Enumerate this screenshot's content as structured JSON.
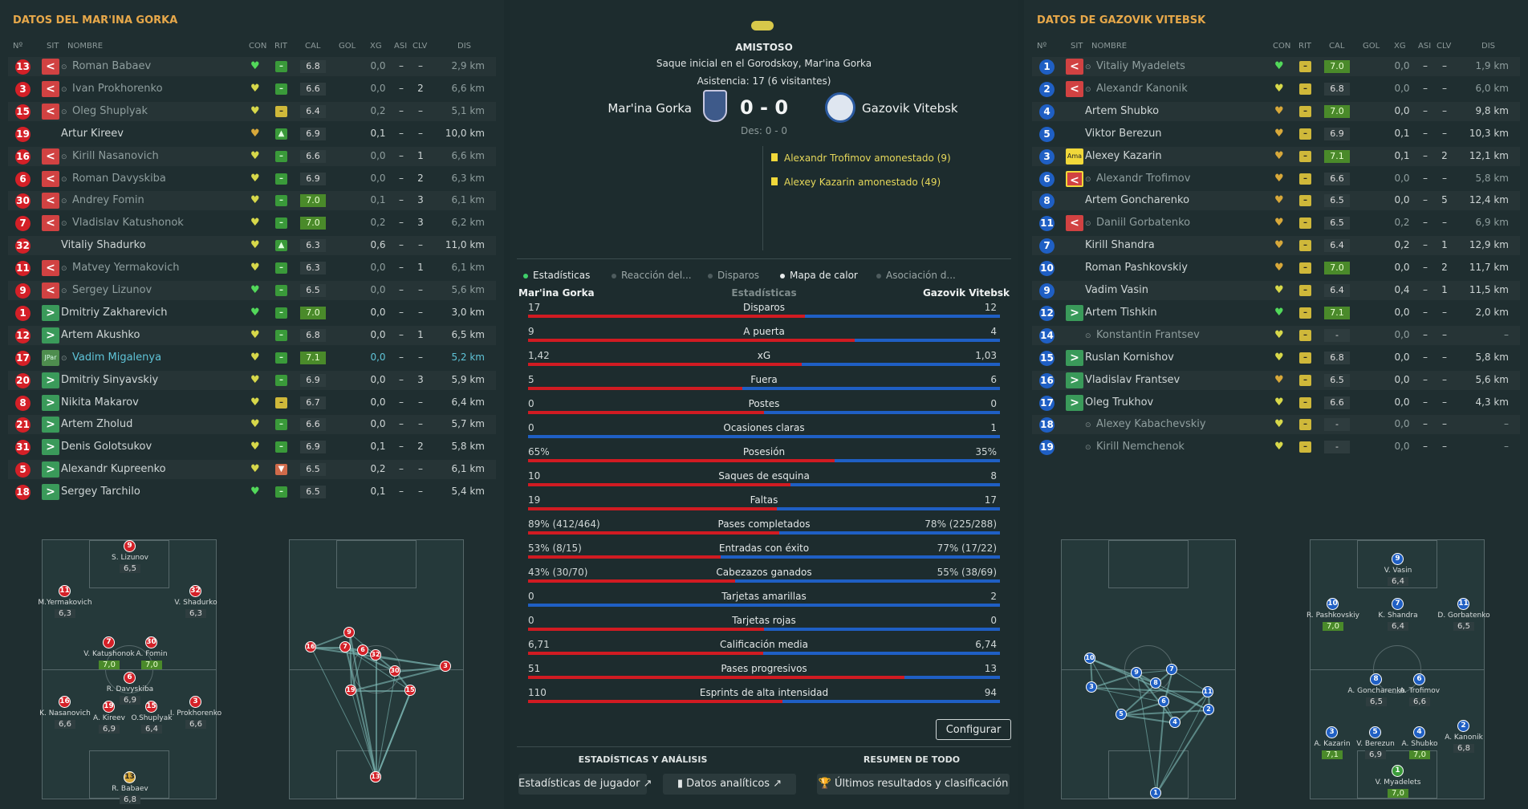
{
  "left": {
    "title": "DATOS DEL MAR'INA GORKA",
    "headers": {
      "num": "Nº",
      "sit": "SIT",
      "name": "NOMBRE",
      "con": "CON",
      "rit": "RIT",
      "cal": "CAL",
      "gol": "GOL",
      "xg": "XG",
      "asi": "ASI",
      "clv": "CLV",
      "dis": "DIS"
    },
    "players": [
      {
        "num": "13",
        "sit": "out",
        "name": "Roman Babaev",
        "con": "g",
        "rit": "g",
        "cal": "6.8",
        "cal_good": false,
        "gol": "",
        "xg": "0,0",
        "asi": "–",
        "clv": "–",
        "dis": "2,9 km",
        "style": "sub"
      },
      {
        "num": "3",
        "sit": "out",
        "name": "Ivan Prokhorenko",
        "con": "y",
        "rit": "g",
        "cal": "6.6",
        "cal_good": false,
        "gol": "",
        "xg": "0,0",
        "asi": "–",
        "clv": "2",
        "dis": "6,6 km",
        "style": "sub"
      },
      {
        "num": "15",
        "sit": "out",
        "name": "Oleg Shuplyak",
        "con": "y",
        "rit": "y",
        "cal": "6.4",
        "cal_good": false,
        "gol": "",
        "xg": "0,2",
        "asi": "–",
        "clv": "–",
        "dis": "5,1 km",
        "style": "sub"
      },
      {
        "num": "19",
        "sit": "",
        "name": "Artur Kireev",
        "con": "o",
        "rit": "up",
        "cal": "6.9",
        "cal_good": false,
        "gol": "",
        "xg": "0,1",
        "asi": "–",
        "clv": "–",
        "dis": "10,0 km",
        "style": "norm"
      },
      {
        "num": "16",
        "sit": "out",
        "name": "Kirill Nasanovich",
        "con": "y",
        "rit": "g",
        "cal": "6.6",
        "cal_good": false,
        "gol": "",
        "xg": "0,0",
        "asi": "–",
        "clv": "1",
        "dis": "6,6 km",
        "style": "sub"
      },
      {
        "num": "6",
        "sit": "out",
        "name": "Roman Davyskiba",
        "con": "y",
        "rit": "g",
        "cal": "6.9",
        "cal_good": false,
        "gol": "",
        "xg": "0,0",
        "asi": "–",
        "clv": "2",
        "dis": "6,3 km",
        "style": "sub"
      },
      {
        "num": "30",
        "sit": "out",
        "name": "Andrey Fomin",
        "con": "y",
        "rit": "g",
        "cal": "7.0",
        "cal_good": true,
        "gol": "",
        "xg": "0,1",
        "asi": "–",
        "clv": "3",
        "dis": "6,1 km",
        "style": "sub"
      },
      {
        "num": "7",
        "sit": "out",
        "name": "Vladislav Katushonok",
        "con": "y",
        "rit": "g",
        "cal": "7.0",
        "cal_good": true,
        "gol": "",
        "xg": "0,2",
        "asi": "–",
        "clv": "3",
        "dis": "6,2 km",
        "style": "sub"
      },
      {
        "num": "32",
        "sit": "",
        "name": "Vitaliy Shadurko",
        "con": "y",
        "rit": "up",
        "cal": "6.3",
        "cal_good": false,
        "gol": "",
        "xg": "0,6",
        "asi": "–",
        "clv": "–",
        "dis": "11,0 km",
        "style": "norm"
      },
      {
        "num": "11",
        "sit": "out",
        "name": "Matvey Yermakovich",
        "con": "y",
        "rit": "g",
        "cal": "6.3",
        "cal_good": false,
        "gol": "",
        "xg": "0,0",
        "asi": "–",
        "clv": "1",
        "dis": "6,1 km",
        "style": "sub"
      },
      {
        "num": "9",
        "sit": "out",
        "name": "Sergey Lizunov",
        "con": "g",
        "rit": "g",
        "cal": "6.5",
        "cal_good": false,
        "gol": "",
        "xg": "0,0",
        "asi": "–",
        "clv": "–",
        "dis": "5,6 km",
        "style": "sub"
      },
      {
        "num": "1",
        "sit": "in",
        "name": "Dmitriy Zakharevich",
        "con": "g",
        "rit": "g",
        "cal": "7.0",
        "cal_good": true,
        "gol": "",
        "xg": "0,0",
        "asi": "–",
        "clv": "–",
        "dis": "3,0 km",
        "style": "norm"
      },
      {
        "num": "12",
        "sit": "in",
        "name": "Artem Akushko",
        "con": "y",
        "rit": "g",
        "cal": "6.8",
        "cal_good": false,
        "gol": "",
        "xg": "0,0",
        "asi": "–",
        "clv": "1",
        "dis": "6,5 km",
        "style": "norm"
      },
      {
        "num": "17",
        "sit": "jpar",
        "name": "Vadim Migalenya",
        "con": "y",
        "rit": "g",
        "cal": "7.1",
        "cal_good": true,
        "gol": "",
        "xg": "0,0",
        "asi": "–",
        "clv": "–",
        "dis": "5,2 km",
        "style": "hl"
      },
      {
        "num": "20",
        "sit": "in",
        "name": "Dmitriy Sinyavskiy",
        "con": "y",
        "rit": "g",
        "cal": "6.9",
        "cal_good": false,
        "gol": "",
        "xg": "0,0",
        "asi": "–",
        "clv": "3",
        "dis": "5,9 km",
        "style": "norm"
      },
      {
        "num": "8",
        "sit": "in",
        "name": "Nikita Makarov",
        "con": "y",
        "rit": "y",
        "cal": "6.7",
        "cal_good": false,
        "gol": "",
        "xg": "0,0",
        "asi": "–",
        "clv": "–",
        "dis": "6,4 km",
        "style": "norm"
      },
      {
        "num": "21",
        "sit": "in",
        "name": "Artem Zholud",
        "con": "y",
        "rit": "g",
        "cal": "6.6",
        "cal_good": false,
        "gol": "",
        "xg": "0,0",
        "asi": "–",
        "clv": "–",
        "dis": "5,7 km",
        "style": "norm"
      },
      {
        "num": "31",
        "sit": "in",
        "name": "Denis Golotsukov",
        "con": "y",
        "rit": "g",
        "cal": "6.9",
        "cal_good": false,
        "gol": "",
        "xg": "0,1",
        "asi": "–",
        "clv": "2",
        "dis": "5,8 km",
        "style": "norm"
      },
      {
        "num": "5",
        "sit": "in",
        "name": "Alexandr Kupreenko",
        "con": "y",
        "rit": "o",
        "cal": "6.5",
        "cal_good": false,
        "gol": "",
        "xg": "0,2",
        "asi": "–",
        "clv": "–",
        "dis": "6,1 km",
        "style": "norm"
      },
      {
        "num": "18",
        "sit": "in",
        "name": "Sergey Tarchilo",
        "con": "g",
        "rit": "g",
        "cal": "6.5",
        "cal_good": false,
        "gol": "",
        "xg": "0,1",
        "asi": "–",
        "clv": "–",
        "dis": "5,4 km",
        "style": "norm"
      }
    ],
    "formation": [
      {
        "num": "9",
        "label": "S. Lizunov",
        "rating": "6,5",
        "good": false
      },
      {
        "num": "11",
        "label": "M.Yermakovich",
        "rating": "6,3",
        "good": false
      },
      {
        "num": "32",
        "label": "V. Shadurko",
        "rating": "6,3",
        "good": false
      },
      {
        "num": "7",
        "label": "V. Katushonok",
        "rating": "7,0",
        "good": true
      },
      {
        "num": "30",
        "label": "A. Fomin",
        "rating": "7,0",
        "good": true
      },
      {
        "num": "6",
        "label": "R. Davyskiba",
        "rating": "6,9",
        "good": false
      },
      {
        "num": "16",
        "label": "K. Nasanovich",
        "rating": "6,6",
        "good": false
      },
      {
        "num": "19",
        "label": "A. Kireev",
        "rating": "6,9",
        "good": false
      },
      {
        "num": "15",
        "label": "O.Shuplyak",
        "rating": "6,4",
        "good": false
      },
      {
        "num": "3",
        "label": "I. Prokhorenko",
        "rating": "6,6",
        "good": false
      },
      {
        "num": "13",
        "label": "R. Babaev",
        "rating": "6,8",
        "good": false
      }
    ],
    "network": [
      "13",
      "9",
      "16",
      "7",
      "6",
      "32",
      "30",
      "3",
      "19",
      "15",
      "13"
    ]
  },
  "right": {
    "title": "DATOS DE GAZOVIK VITEBSK",
    "headers": {
      "num": "Nº",
      "sit": "SIT",
      "name": "NOMBRE",
      "con": "CON",
      "rit": "RIT",
      "cal": "CAL",
      "gol": "GOL",
      "xg": "XG",
      "asi": "ASI",
      "clv": "CLV",
      "dis": "DIS"
    },
    "players": [
      {
        "num": "1",
        "sit": "out",
        "name": "Vitaliy Myadelets",
        "con": "g",
        "rit": "y",
        "cal": "7.0",
        "cal_good": true,
        "gol": "",
        "xg": "0,0",
        "asi": "–",
        "clv": "–",
        "dis": "1,9 km",
        "style": "sub"
      },
      {
        "num": "2",
        "sit": "out",
        "name": "Alexandr Kanonik",
        "con": "y",
        "rit": "y",
        "cal": "6.8",
        "cal_good": false,
        "gol": "",
        "xg": "0,0",
        "asi": "–",
        "clv": "–",
        "dis": "6,0 km",
        "style": "sub"
      },
      {
        "num": "4",
        "sit": "",
        "name": "Artem Shubko",
        "con": "o",
        "rit": "y",
        "cal": "7.0",
        "cal_good": true,
        "gol": "",
        "xg": "0,0",
        "asi": "–",
        "clv": "–",
        "dis": "9,8 km",
        "style": "norm"
      },
      {
        "num": "5",
        "sit": "",
        "name": "Viktor Berezun",
        "con": "o",
        "rit": "y",
        "cal": "6.9",
        "cal_good": false,
        "gol": "",
        "xg": "0,1",
        "asi": "–",
        "clv": "–",
        "dis": "10,3 km",
        "style": "norm"
      },
      {
        "num": "3",
        "sit": "ama",
        "name": "Alexey Kazarin",
        "con": "o",
        "rit": "y",
        "cal": "7.1",
        "cal_good": true,
        "gol": "",
        "xg": "0,1",
        "asi": "–",
        "clv": "2",
        "dis": "12,1 km",
        "style": "norm"
      },
      {
        "num": "6",
        "sit": "outama",
        "name": "Alexandr Trofimov",
        "con": "o",
        "rit": "y",
        "cal": "6.6",
        "cal_good": false,
        "gol": "",
        "xg": "0,0",
        "asi": "–",
        "clv": "–",
        "dis": "5,8 km",
        "style": "sub"
      },
      {
        "num": "8",
        "sit": "",
        "name": "Artem Goncharenko",
        "con": "o",
        "rit": "y",
        "cal": "6.5",
        "cal_good": false,
        "gol": "",
        "xg": "0,0",
        "asi": "–",
        "clv": "5",
        "dis": "12,4 km",
        "style": "norm"
      },
      {
        "num": "11",
        "sit": "out",
        "name": "Daniil Gorbatenko",
        "con": "o",
        "rit": "y",
        "cal": "6.5",
        "cal_good": false,
        "gol": "",
        "xg": "0,2",
        "asi": "–",
        "clv": "–",
        "dis": "6,9 km",
        "style": "sub"
      },
      {
        "num": "7",
        "sit": "",
        "name": "Kirill Shandra",
        "con": "o",
        "rit": "y",
        "cal": "6.4",
        "cal_good": false,
        "gol": "",
        "xg": "0,2",
        "asi": "–",
        "clv": "1",
        "dis": "12,9 km",
        "style": "norm"
      },
      {
        "num": "10",
        "sit": "",
        "name": "Roman Pashkovskiy",
        "con": "o",
        "rit": "y",
        "cal": "7.0",
        "cal_good": true,
        "gol": "",
        "xg": "0,0",
        "asi": "–",
        "clv": "2",
        "dis": "11,7 km",
        "style": "norm"
      },
      {
        "num": "9",
        "sit": "",
        "name": "Vadim Vasin",
        "con": "y",
        "rit": "y",
        "cal": "6.4",
        "cal_good": false,
        "gol": "",
        "xg": "0,4",
        "asi": "–",
        "clv": "1",
        "dis": "11,5 km",
        "style": "norm"
      },
      {
        "num": "12",
        "sit": "in",
        "name": "Artem Tishkin",
        "con": "g",
        "rit": "y",
        "cal": "7.1",
        "cal_good": true,
        "gol": "",
        "xg": "0,0",
        "asi": "–",
        "clv": "–",
        "dis": "2,0 km",
        "style": "norm"
      },
      {
        "num": "14",
        "sit": "",
        "name": "Konstantin Frantsev",
        "con": "y",
        "rit": "y",
        "cal": "-",
        "cal_good": false,
        "gol": "",
        "xg": "0,0",
        "asi": "–",
        "clv": "–",
        "dis": "–",
        "style": "sub"
      },
      {
        "num": "15",
        "sit": "in",
        "name": "Ruslan Kornishov",
        "con": "y",
        "rit": "y",
        "cal": "6.8",
        "cal_good": false,
        "gol": "",
        "xg": "0,0",
        "asi": "–",
        "clv": "–",
        "dis": "5,8 km",
        "style": "norm"
      },
      {
        "num": "16",
        "sit": "in",
        "name": "Vladislav Frantsev",
        "con": "o",
        "rit": "y",
        "cal": "6.5",
        "cal_good": false,
        "gol": "",
        "xg": "0,0",
        "asi": "–",
        "clv": "–",
        "dis": "5,6 km",
        "style": "norm"
      },
      {
        "num": "17",
        "sit": "in",
        "name": "Oleg Trukhov",
        "con": "y",
        "rit": "y",
        "cal": "6.6",
        "cal_good": false,
        "gol": "",
        "xg": "0,0",
        "asi": "–",
        "clv": "–",
        "dis": "4,3 km",
        "style": "norm"
      },
      {
        "num": "18",
        "sit": "",
        "name": "Alexey Kabachevskiy",
        "con": "y",
        "rit": "y",
        "cal": "-",
        "cal_good": false,
        "gol": "",
        "xg": "0,0",
        "asi": "–",
        "clv": "–",
        "dis": "–",
        "style": "sub"
      },
      {
        "num": "19",
        "sit": "",
        "name": "Kirill Nemchenok",
        "con": "y",
        "rit": "y",
        "cal": "-",
        "cal_good": false,
        "gol": "",
        "xg": "0,0",
        "asi": "–",
        "clv": "–",
        "dis": "–",
        "style": "sub"
      }
    ],
    "formation": [
      {
        "num": "9",
        "label": "V. Vasin",
        "rating": "6,4",
        "good": false
      },
      {
        "num": "10",
        "label": "R. Pashkovskiy",
        "rating": "7,0",
        "good": true
      },
      {
        "num": "7",
        "label": "K. Shandra",
        "rating": "6,4",
        "good": false
      },
      {
        "num": "11",
        "label": "D. Gorbatenko",
        "rating": "6,5",
        "good": false
      },
      {
        "num": "8",
        "label": "A. Goncharenko",
        "rating": "6,5",
        "good": false
      },
      {
        "num": "6",
        "label": "A. Trofimov",
        "rating": "6,6",
        "good": false
      },
      {
        "num": "3",
        "label": "A. Kazarin",
        "rating": "7,1",
        "good": true
      },
      {
        "num": "5",
        "label": "V. Berezun",
        "rating": "6,9",
        "good": false
      },
      {
        "num": "4",
        "label": "A. Shubko",
        "rating": "7,0",
        "good": true
      },
      {
        "num": "2",
        "label": "A. Kanonik",
        "rating": "6,8",
        "good": false
      },
      {
        "num": "1",
        "label": "V. Myadelets",
        "rating": "7,0",
        "good": true
      }
    ],
    "network": [
      "10",
      "3",
      "9",
      "8",
      "7",
      "6",
      "5",
      "4",
      "11",
      "2",
      "1"
    ]
  },
  "center": {
    "competition": "AMISTOSO",
    "venue": "Saque inicial en el Gorodskoy, Mar'ina Gorka",
    "attendance": "Asistencia: 17 (6 visitantes)",
    "home": "Mar'ina Gorka",
    "away": "Gazovik Vitebsk",
    "score": "0 - 0",
    "halftime": "Des: 0 - 0",
    "events": [
      "Alexandr Trofimov amonestado (9)",
      "Alexey Kazarin amonestado (49)"
    ],
    "tabs": [
      "Estadísticas",
      "Reacción del...",
      "Disparos",
      "Mapa de calor",
      "Asociación d..."
    ],
    "stats_home": "Mar'ina Gorka",
    "stats_title": "Estadísticas",
    "stats_away": "Gazovik Vitebsk",
    "stats": [
      {
        "label": "Disparos",
        "home": "17",
        "away": "12",
        "hv": 17,
        "av": 12
      },
      {
        "label": "A puerta",
        "home": "9",
        "away": "4",
        "hv": 9,
        "av": 4
      },
      {
        "label": "xG",
        "home": "1,42",
        "away": "1,03",
        "hv": 1.42,
        "av": 1.03
      },
      {
        "label": "Fuera",
        "home": "5",
        "away": "6",
        "hv": 5,
        "av": 6
      },
      {
        "label": "Postes",
        "home": "0",
        "away": "0",
        "hv": 0,
        "av": 0
      },
      {
        "label": "Ocasiones claras",
        "home": "0",
        "away": "1",
        "hv": 0,
        "av": 1
      },
      {
        "label": "Posesión",
        "home": "65%",
        "away": "35%",
        "hv": 65,
        "av": 35
      },
      {
        "label": "Saques de esquina",
        "home": "10",
        "away": "8",
        "hv": 10,
        "av": 8
      },
      {
        "label": "Faltas",
        "home": "19",
        "away": "17",
        "hv": 19,
        "av": 17
      },
      {
        "label": "Pases completados",
        "home": "89% (412/464)",
        "away": "78% (225/288)",
        "hv": 89,
        "av": 78
      },
      {
        "label": "Entradas con éxito",
        "home": "53% (8/15)",
        "away": "77% (17/22)",
        "hv": 53,
        "av": 77
      },
      {
        "label": "Cabezazos ganados",
        "home": "43% (30/70)",
        "away": "55% (38/69)",
        "hv": 43,
        "av": 55
      },
      {
        "label": "Tarjetas amarillas",
        "home": "0",
        "away": "2",
        "hv": 0,
        "av": 2
      },
      {
        "label": "Tarjetas rojas",
        "home": "0",
        "away": "0",
        "hv": 0,
        "av": 0
      },
      {
        "label": "Calificación media",
        "home": "6,71",
        "away": "6,74",
        "hv": 6.71,
        "av": 6.74
      },
      {
        "label": "Pases progresivos",
        "home": "51",
        "away": "13",
        "hv": 51,
        "av": 13
      },
      {
        "label": "Esprints de alta intensidad",
        "home": "110",
        "away": "94",
        "hv": 110,
        "av": 94
      }
    ],
    "configure": "Configurar",
    "section_left": "ESTADÍSTICAS Y ANÁLISIS",
    "section_right": "RESUMEN DE TODO",
    "buttons": [
      "Estadísticas de jugador",
      "Datos analíticos",
      "Últimos resultados y clasificación"
    ]
  },
  "colors": {
    "home": "#d42027",
    "away": "#1f5fc4",
    "accent": "#e7a84a"
  }
}
